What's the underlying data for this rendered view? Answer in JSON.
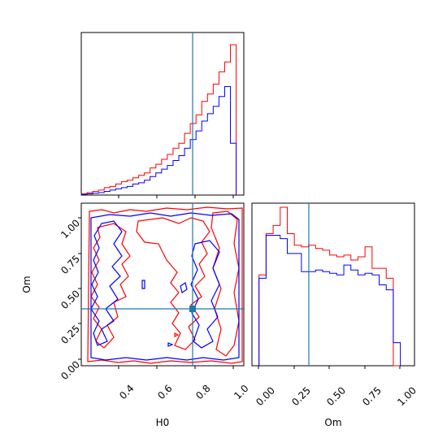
{
  "chart_data": [
    {
      "panel": "H0 marginal histogram",
      "type": "histogram",
      "xlim": [
        0.2,
        1.05
      ],
      "bin_edges": [
        0.2,
        0.23,
        0.26,
        0.29,
        0.32,
        0.35,
        0.38,
        0.41,
        0.44,
        0.47,
        0.5,
        0.53,
        0.56,
        0.59,
        0.62,
        0.65,
        0.68,
        0.71,
        0.74,
        0.77,
        0.8,
        0.83,
        0.86,
        0.89,
        0.92,
        0.95,
        0.98,
        1.01
      ],
      "series": [
        {
          "name": "red",
          "color": "#ff0000",
          "values": [
            1,
            2,
            3,
            4,
            6,
            7,
            9,
            11,
            12,
            14,
            16,
            18,
            22,
            25,
            29,
            33,
            38,
            42,
            50,
            58,
            65,
            76,
            82,
            90,
            100,
            108,
            122
          ]
        },
        {
          "name": "blue",
          "color": "#0000ff",
          "values": [
            0.5,
            1,
            1.5,
            2,
            3,
            4,
            5,
            6,
            7,
            9,
            10,
            12,
            15,
            18,
            21,
            24,
            28,
            32,
            38,
            45,
            52,
            60,
            66,
            72,
            80,
            88,
            42
          ]
        }
      ],
      "truth_line": 0.79
    },
    {
      "panel": "2D contour H0 vs Om",
      "type": "contour",
      "xlim": [
        0.2,
        1.05
      ],
      "ylim": [
        -0.03,
        1.12
      ],
      "xlabel": "H0",
      "ylabel": "Om",
      "xticks": [
        "0.4",
        "0.6",
        "0.8",
        "1.0"
      ],
      "yticks": [
        "0.00",
        "0.25",
        "0.50",
        "0.75",
        "1.00"
      ],
      "truth": {
        "H0": 0.79,
        "Om": 0.35
      },
      "series": [
        {
          "name": "red",
          "color": "#ff0000"
        },
        {
          "name": "blue",
          "color": "#0000ff"
        }
      ]
    },
    {
      "panel": "Om marginal histogram",
      "type": "histogram",
      "xlim": [
        -0.05,
        1.1
      ],
      "xlabel": "Om",
      "xticks": [
        "0.00",
        "0.25",
        "0.50",
        "0.75",
        "1.00"
      ],
      "bin_edges": [
        0.0,
        0.05,
        0.1,
        0.15,
        0.2,
        0.25,
        0.3,
        0.35,
        0.4,
        0.45,
        0.5,
        0.55,
        0.6,
        0.65,
        0.7,
        0.75,
        0.8,
        0.85,
        0.9,
        0.95,
        1.0
      ],
      "series": [
        {
          "name": "red",
          "color": "#ff0000",
          "values": [
            0.55,
            0.8,
            0.85,
            0.96,
            0.8,
            0.73,
            0.72,
            0.73,
            0.71,
            0.7,
            0.67,
            0.66,
            0.67,
            0.64,
            0.66,
            0.72,
            0.59,
            0.59,
            0.53,
            0.0
          ]
        },
        {
          "name": "blue",
          "color": "#0000ff",
          "values": [
            0.53,
            0.79,
            0.79,
            0.77,
            0.68,
            0.68,
            0.57,
            0.57,
            0.58,
            0.57,
            0.56,
            0.55,
            0.61,
            0.58,
            0.55,
            0.56,
            0.55,
            0.49,
            0.46,
            0.14
          ]
        }
      ],
      "truth_line": 0.35
    }
  ]
}
